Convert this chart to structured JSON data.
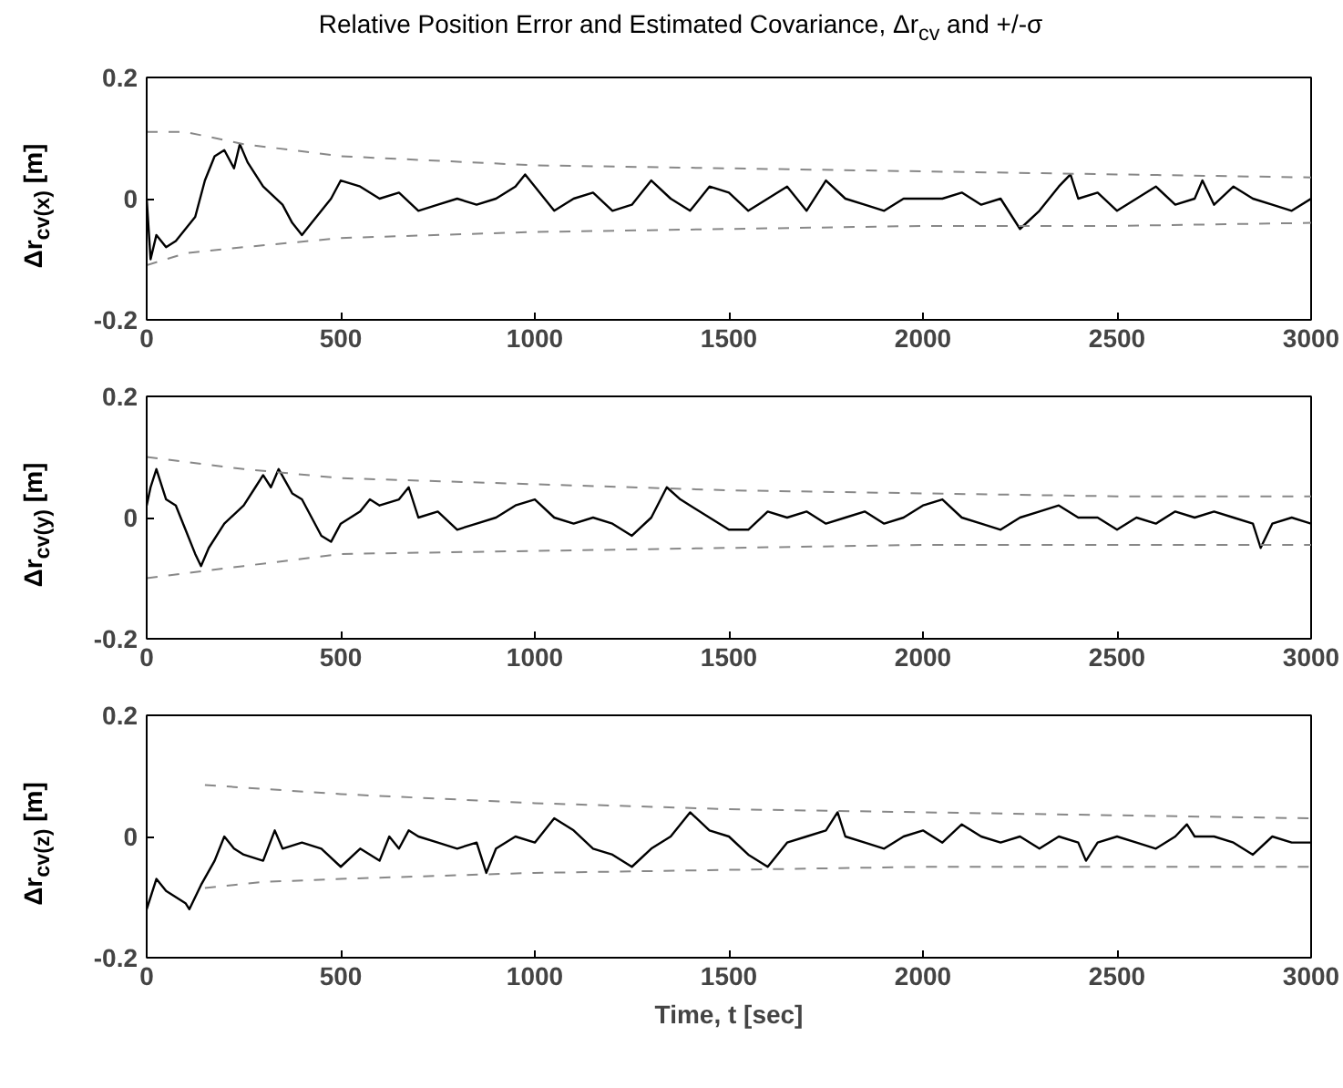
{
  "chart_data": [
    {
      "type": "line",
      "title": "Relative Position Error and Estimated Covariance, Δr$_{cv}$ and +/-σ",
      "ylabel": "Δr$_{cv(x)}$ [m]",
      "xlim": [
        0,
        3000
      ],
      "ylim": [
        -0.2,
        0.2
      ],
      "xticks": [
        0,
        500,
        1000,
        1500,
        2000,
        2500,
        3000
      ],
      "yticks": [
        -0.2,
        0,
        0.2
      ],
      "grid": false,
      "series": [
        {
          "color": "#000000",
          "line_style": "solid",
          "x": [
            0,
            10,
            25,
            50,
            75,
            100,
            125,
            150,
            175,
            200,
            225,
            240,
            260,
            300,
            350,
            375,
            400,
            425,
            450,
            475,
            500,
            550,
            600,
            650,
            700,
            750,
            800,
            850,
            900,
            950,
            975,
            1000,
            1050,
            1100,
            1150,
            1200,
            1250,
            1300,
            1350,
            1400,
            1450,
            1500,
            1550,
            1600,
            1650,
            1700,
            1750,
            1800,
            1850,
            1900,
            1950,
            2000,
            2050,
            2100,
            2150,
            2200,
            2250,
            2300,
            2350,
            2380,
            2400,
            2450,
            2500,
            2550,
            2600,
            2650,
            2700,
            2720,
            2750,
            2800,
            2850,
            2900,
            2950,
            3000
          ],
          "values": [
            0.0,
            -0.1,
            -0.06,
            -0.08,
            -0.07,
            -0.05,
            -0.03,
            0.03,
            0.07,
            0.08,
            0.05,
            0.09,
            0.06,
            0.02,
            -0.01,
            -0.04,
            -0.06,
            -0.04,
            -0.02,
            0.0,
            0.03,
            0.02,
            0.0,
            0.01,
            -0.02,
            -0.01,
            0.0,
            -0.01,
            0.0,
            0.02,
            0.04,
            0.02,
            -0.02,
            0.0,
            0.01,
            -0.02,
            -0.01,
            0.03,
            0.0,
            -0.02,
            0.02,
            0.01,
            -0.02,
            0.0,
            0.02,
            -0.02,
            0.03,
            0.0,
            -0.01,
            -0.02,
            0.0,
            0.0,
            0.0,
            0.01,
            -0.01,
            0.0,
            -0.05,
            -0.02,
            0.02,
            0.04,
            0.0,
            0.01,
            -0.02,
            0.0,
            0.02,
            -0.01,
            0.0,
            0.03,
            -0.01,
            0.02,
            0.0,
            -0.01,
            -0.02,
            0.0
          ]
        },
        {
          "color": "#888888",
          "line_style": "dashed",
          "x": [
            0,
            100,
            250,
            500,
            1000,
            1500,
            2000,
            2500,
            3000
          ],
          "values": [
            0.11,
            0.11,
            0.09,
            0.07,
            0.055,
            0.05,
            0.045,
            0.04,
            0.035
          ]
        },
        {
          "color": "#888888",
          "line_style": "dashed",
          "x": [
            0,
            100,
            250,
            500,
            1000,
            1500,
            2000,
            2500,
            3000
          ],
          "values": [
            -0.11,
            -0.09,
            -0.08,
            -0.065,
            -0.055,
            -0.05,
            -0.045,
            -0.045,
            -0.04
          ]
        }
      ]
    },
    {
      "type": "line",
      "ylabel": "Δr$_{cv(y)}$ [m]",
      "xlim": [
        0,
        3000
      ],
      "ylim": [
        -0.2,
        0.2
      ],
      "xticks": [
        0,
        500,
        1000,
        1500,
        2000,
        2500,
        3000
      ],
      "yticks": [
        -0.2,
        0,
        0.2
      ],
      "grid": false,
      "series": [
        {
          "color": "#000000",
          "line_style": "solid",
          "x": [
            0,
            10,
            25,
            50,
            75,
            100,
            125,
            140,
            160,
            200,
            250,
            280,
            300,
            320,
            340,
            375,
            400,
            450,
            475,
            500,
            550,
            575,
            600,
            650,
            675,
            700,
            750,
            800,
            850,
            900,
            950,
            1000,
            1050,
            1100,
            1150,
            1200,
            1250,
            1300,
            1340,
            1375,
            1400,
            1450,
            1500,
            1550,
            1600,
            1650,
            1700,
            1750,
            1800,
            1850,
            1900,
            1950,
            2000,
            2050,
            2100,
            2150,
            2200,
            2250,
            2300,
            2350,
            2400,
            2450,
            2500,
            2550,
            2600,
            2650,
            2700,
            2750,
            2800,
            2850,
            2870,
            2900,
            2950,
            3000
          ],
          "values": [
            0.02,
            0.05,
            0.08,
            0.03,
            0.02,
            -0.02,
            -0.06,
            -0.08,
            -0.05,
            -0.01,
            0.02,
            0.05,
            0.07,
            0.05,
            0.08,
            0.04,
            0.03,
            -0.03,
            -0.04,
            -0.01,
            0.01,
            0.03,
            0.02,
            0.03,
            0.05,
            0.0,
            0.01,
            -0.02,
            -0.01,
            0.0,
            0.02,
            0.03,
            0.0,
            -0.01,
            0.0,
            -0.01,
            -0.03,
            0.0,
            0.05,
            0.03,
            0.02,
            0.0,
            -0.02,
            -0.02,
            0.01,
            0.0,
            0.01,
            -0.01,
            0.0,
            0.01,
            -0.01,
            0.0,
            0.02,
            0.03,
            0.0,
            -0.01,
            -0.02,
            0.0,
            0.01,
            0.02,
            0.0,
            0.0,
            -0.02,
            0.0,
            -0.01,
            0.01,
            0.0,
            0.01,
            0.0,
            -0.01,
            -0.05,
            -0.01,
            0.0,
            -0.01
          ]
        },
        {
          "color": "#888888",
          "line_style": "dashed",
          "x": [
            0,
            250,
            500,
            1000,
            1500,
            2000,
            2500,
            3000
          ],
          "values": [
            0.1,
            0.08,
            0.065,
            0.055,
            0.045,
            0.04,
            0.035,
            0.035
          ]
        },
        {
          "color": "#888888",
          "line_style": "dashed",
          "x": [
            0,
            250,
            500,
            1000,
            1500,
            2000,
            2500,
            3000
          ],
          "values": [
            -0.1,
            -0.08,
            -0.06,
            -0.055,
            -0.05,
            -0.045,
            -0.045,
            -0.045
          ]
        }
      ]
    },
    {
      "type": "line",
      "ylabel": "Δr$_{cv(z)}$ [m]",
      "xlabel": "Time, t [sec]",
      "xlim": [
        0,
        3000
      ],
      "ylim": [
        -0.2,
        0.2
      ],
      "xticks": [
        0,
        500,
        1000,
        1500,
        2000,
        2500,
        3000
      ],
      "yticks": [
        -0.2,
        0,
        0.2
      ],
      "grid": false,
      "series": [
        {
          "color": "#000000",
          "line_style": "solid",
          "x": [
            0,
            25,
            50,
            75,
            100,
            110,
            140,
            175,
            200,
            225,
            250,
            300,
            330,
            350,
            400,
            450,
            500,
            550,
            600,
            625,
            650,
            675,
            700,
            750,
            800,
            850,
            875,
            900,
            950,
            1000,
            1050,
            1100,
            1150,
            1200,
            1250,
            1300,
            1350,
            1400,
            1450,
            1500,
            1550,
            1600,
            1650,
            1700,
            1750,
            1780,
            1800,
            1850,
            1900,
            1950,
            2000,
            2050,
            2100,
            2150,
            2200,
            2250,
            2300,
            2350,
            2400,
            2420,
            2450,
            2500,
            2550,
            2600,
            2650,
            2680,
            2700,
            2750,
            2800,
            2850,
            2900,
            2950,
            3000
          ],
          "values": [
            -0.12,
            -0.07,
            -0.09,
            -0.1,
            -0.11,
            -0.12,
            -0.08,
            -0.04,
            0.0,
            -0.02,
            -0.03,
            -0.04,
            0.01,
            -0.02,
            -0.01,
            -0.02,
            -0.05,
            -0.02,
            -0.04,
            0.0,
            -0.02,
            0.01,
            0.0,
            -0.01,
            -0.02,
            -0.01,
            -0.06,
            -0.02,
            0.0,
            -0.01,
            0.03,
            0.01,
            -0.02,
            -0.03,
            -0.05,
            -0.02,
            0.0,
            0.04,
            0.01,
            0.0,
            -0.03,
            -0.05,
            -0.01,
            0.0,
            0.01,
            0.04,
            0.0,
            -0.01,
            -0.02,
            0.0,
            0.01,
            -0.01,
            0.02,
            0.0,
            -0.01,
            0.0,
            -0.02,
            0.0,
            -0.01,
            -0.04,
            -0.01,
            0.0,
            -0.01,
            -0.02,
            0.0,
            0.02,
            0.0,
            0.0,
            -0.01,
            -0.03,
            0.0,
            -0.01,
            -0.01
          ]
        },
        {
          "color": "#888888",
          "line_style": "dashed",
          "x": [
            150,
            500,
            1000,
            1500,
            2000,
            2500,
            3000
          ],
          "values": [
            0.085,
            0.07,
            0.055,
            0.045,
            0.04,
            0.035,
            0.03
          ]
        },
        {
          "color": "#888888",
          "line_style": "dashed",
          "x": [
            150,
            300,
            500,
            1000,
            1500,
            2000,
            2500,
            3000
          ],
          "values": [
            -0.085,
            -0.075,
            -0.07,
            -0.06,
            -0.055,
            -0.05,
            -0.05,
            -0.05
          ]
        }
      ]
    }
  ]
}
